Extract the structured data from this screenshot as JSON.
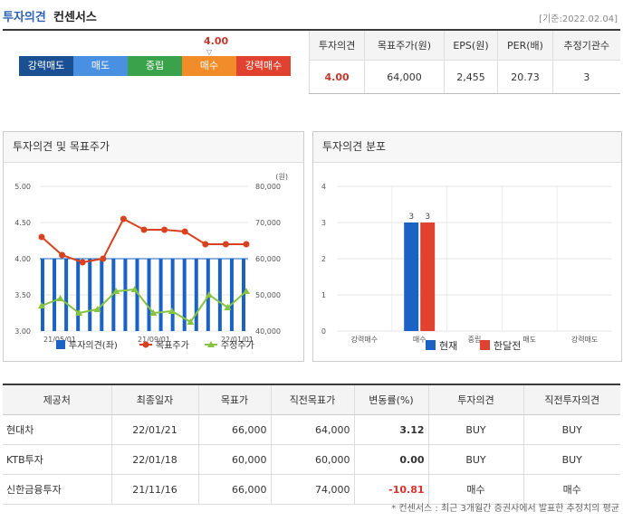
{
  "header": {
    "title": "투자의견",
    "subtitle": "컨센서스",
    "base_date": "[기준:2022.02.04]"
  },
  "scorebar": {
    "value": "4.00",
    "segments": [
      {
        "label": "강력매도",
        "color": "#1b4f93"
      },
      {
        "label": "매도",
        "color": "#4a90e2"
      },
      {
        "label": "중립",
        "color": "#3aa24a"
      },
      {
        "label": "매수",
        "color": "#f28c28"
      },
      {
        "label": "강력매수",
        "color": "#e0422f"
      }
    ]
  },
  "summary": {
    "headers": [
      "투자의견",
      "목표주가(원)",
      "EPS(원)",
      "PER(배)",
      "추정기관수"
    ],
    "values": [
      "4.00",
      "64,000",
      "2,455",
      "20.73",
      "3"
    ]
  },
  "panel_left": {
    "title": "투자의견 및 목표주가"
  },
  "panel_right": {
    "title": "투자의견 분포"
  },
  "chart_data": [
    {
      "type": "bar+line",
      "title": "투자의견 및 목표주가",
      "ylim_left": [
        3.0,
        5.0
      ],
      "yticks_left": [
        "5.00",
        "4.50",
        "4.00",
        "3.50",
        "3.00"
      ],
      "ylim_right": [
        40000,
        80000
      ],
      "yticks_right": [
        "80,000",
        "70,000",
        "60,000",
        "50,000",
        "40,000"
      ],
      "right_unit": "(원)",
      "x_ticks": [
        "21/05/01",
        "21/09/01",
        "22/01/01"
      ],
      "bars": {
        "name": "투자의견(좌)",
        "color": "#1a62c4",
        "value": 4.0,
        "count": 18
      },
      "series": [
        {
          "name": "목표주가",
          "color": "#d9421f",
          "marker": "circle",
          "values": [
            66000,
            61000,
            59000,
            60000,
            71000,
            68000,
            68000,
            67500,
            64000,
            64000,
            64000
          ]
        },
        {
          "name": "수정주가",
          "color": "#86c440",
          "marker": "triangle",
          "values": [
            47000,
            49000,
            45000,
            46000,
            51000,
            51500,
            45000,
            45500,
            42500,
            50000,
            46500,
            51000
          ]
        }
      ]
    },
    {
      "type": "bar",
      "title": "투자의견 분포",
      "categories": [
        "강력매수",
        "매수",
        "중립",
        "매도",
        "강력매도"
      ],
      "ylim": [
        0,
        4
      ],
      "yticks": [
        "4",
        "3",
        "2",
        "1",
        "0"
      ],
      "series": [
        {
          "name": "현재",
          "color": "#1a62c4",
          "values": [
            0,
            3,
            0,
            0,
            0
          ]
        },
        {
          "name": "한달전",
          "color": "#e0422f",
          "values": [
            0,
            3,
            0,
            0,
            0
          ]
        }
      ]
    }
  ],
  "brokers": {
    "headers": [
      "제공처",
      "최종일자",
      "목표가",
      "직전목표가",
      "변동률(%)",
      "투자의견",
      "직전투자의견"
    ],
    "rows": [
      {
        "name": "현대차",
        "date": "22/01/21",
        "target": "66,000",
        "prev": "64,000",
        "change": "3.12",
        "opinion": "BUY",
        "prev_opinion": "BUY"
      },
      {
        "name": "KTB투자",
        "date": "22/01/18",
        "target": "60,000",
        "prev": "60,000",
        "change": "0.00",
        "opinion": "BUY",
        "prev_opinion": "BUY"
      },
      {
        "name": "신한금융투자",
        "date": "21/11/16",
        "target": "66,000",
        "prev": "74,000",
        "change": "-10.81",
        "opinion": "매수",
        "prev_opinion": "매수"
      }
    ]
  },
  "footnote": "* 컨센서스 : 최근 3개월간 증권사에서 발표한 추정치의 평균"
}
